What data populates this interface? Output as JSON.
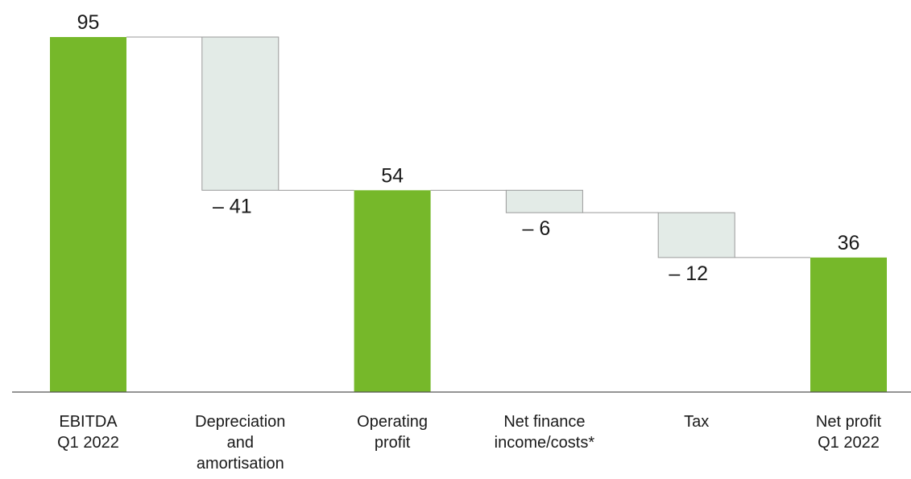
{
  "chart_data": {
    "type": "waterfall",
    "categories": [
      [
        "EBITDA",
        "Q1 2022"
      ],
      [
        "Depreciation",
        "and",
        "amortisation"
      ],
      [
        "Operating",
        "profit"
      ],
      [
        "Net finance",
        "income/costs*"
      ],
      [
        "Tax"
      ],
      [
        "Net profit",
        "Q1 2022"
      ]
    ],
    "values": [
      95,
      -41,
      54,
      -6,
      -12,
      36
    ],
    "value_labels": [
      "95",
      "– 41",
      "54",
      "– 6",
      "– 12",
      "36"
    ],
    "totals": [
      true,
      false,
      true,
      false,
      false,
      true
    ],
    "total_color": "#76b82a",
    "step_color": "#e3ebe7",
    "ylim": [
      0,
      95
    ]
  }
}
